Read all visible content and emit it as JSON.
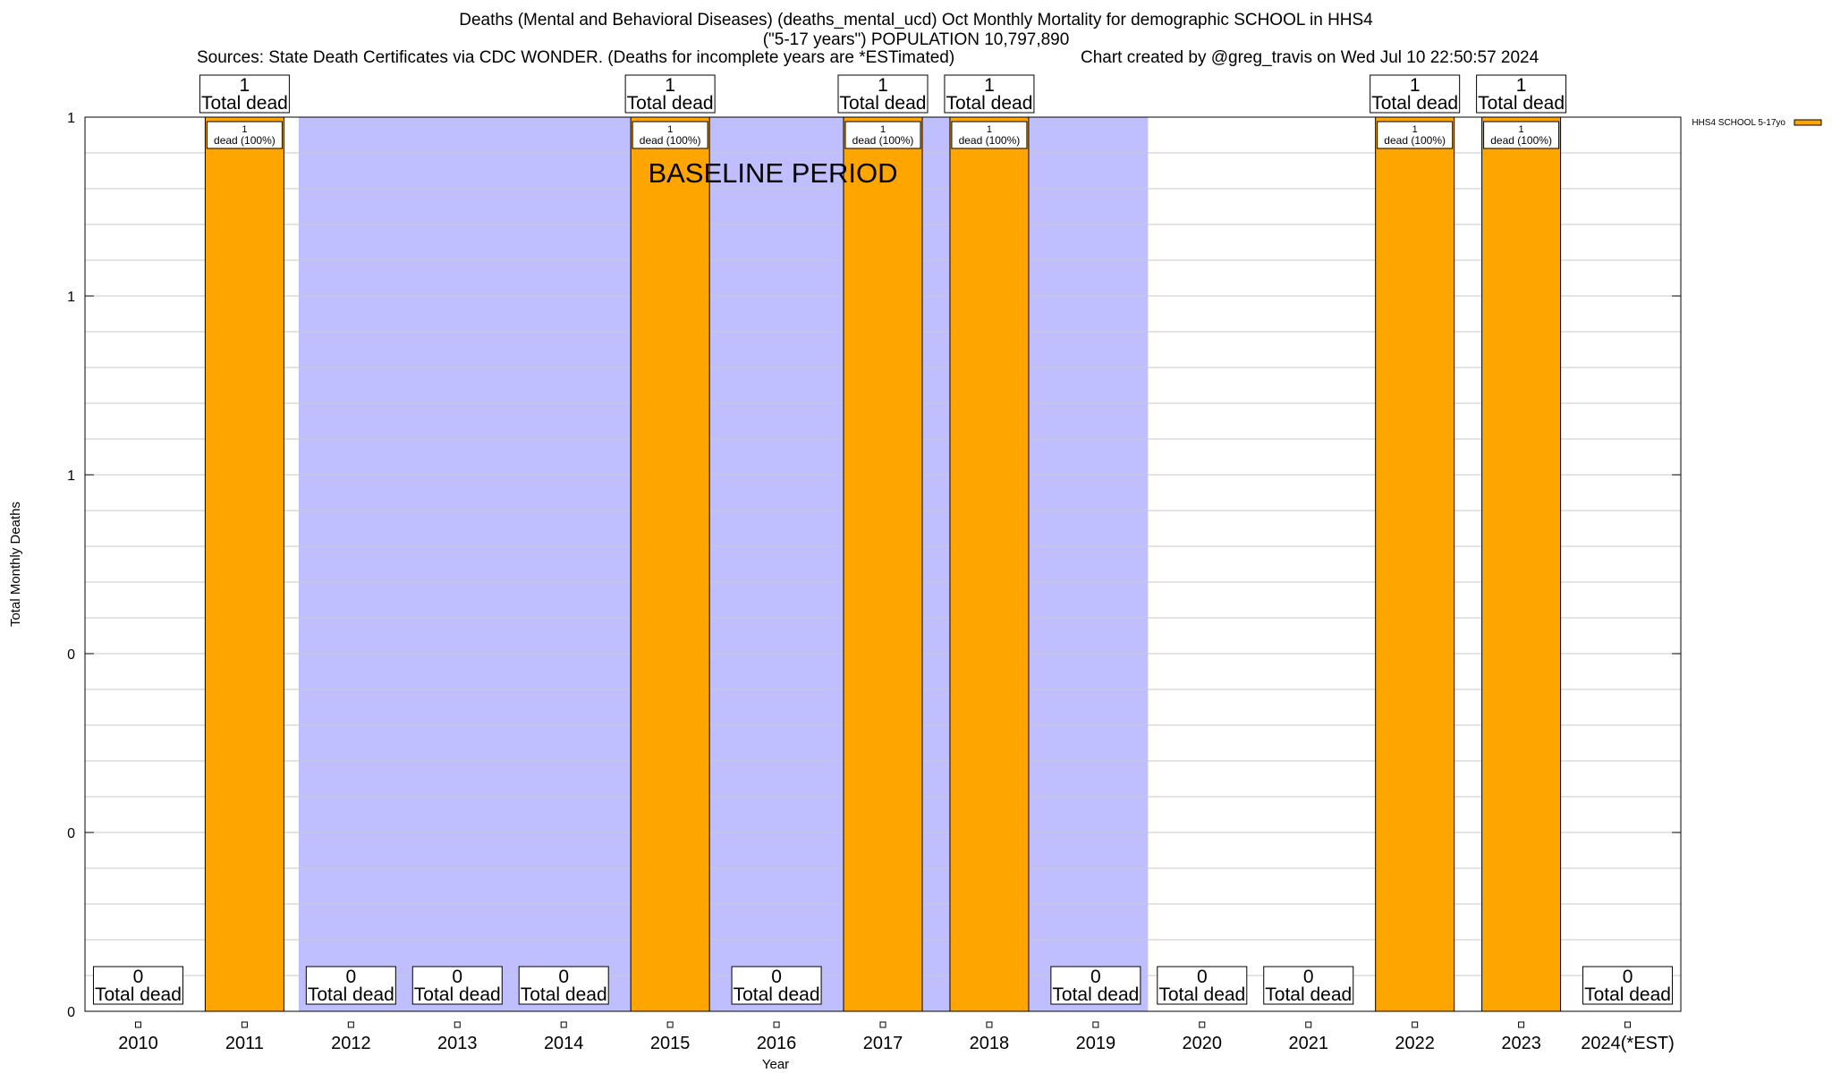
{
  "titles": {
    "line1": "Deaths (Mental and Behavioral Diseases) (deaths_mental_ucd) Oct Monthly Mortality for demographic SCHOOL in HHS4",
    "line2": "(\"5-17 years\") POPULATION 10,797,890",
    "sources": "Sources: State Death Certificates via CDC WONDER. (Deaths for incomplete years are *ESTimated)",
    "credit": "Chart created by @greg_travis on Wed Jul 10 22:50:57 2024"
  },
  "chart_data": {
    "type": "bar",
    "categories": [
      "2010",
      "2011",
      "2012",
      "2013",
      "2014",
      "2015",
      "2016",
      "2017",
      "2018",
      "2019",
      "2020",
      "2021",
      "2022",
      "2023",
      "2024(*EST)"
    ],
    "series": [
      {
        "name": "HHS4 SCHOOL 5-17yo",
        "values": [
          0,
          1,
          0,
          0,
          0,
          1,
          0,
          1,
          1,
          0,
          0,
          0,
          1,
          1,
          0
        ],
        "color": "#ffa500"
      }
    ],
    "total_labels": [
      "0",
      "1",
      "0",
      "0",
      "0",
      "1",
      "0",
      "1",
      "1",
      "0",
      "0",
      "0",
      "1",
      "1",
      "0"
    ],
    "total_suffix": "Total dead",
    "bar_labels": [
      "",
      "1\ndead (100%)",
      "",
      "",
      "",
      "1\ndead (100%)",
      "",
      "1\ndead (100%)",
      "1\ndead (100%)",
      "",
      "",
      "",
      "1\ndead (100%)",
      "1\ndead (100%)",
      ""
    ],
    "xlabel": "Year",
    "ylabel": "Total Monthly Deaths",
    "ylim": [
      0,
      1
    ],
    "yticks": [
      0,
      0.2,
      0.4,
      0.6,
      0.8,
      1
    ],
    "ytick_labels": [
      "0",
      "0",
      "0",
      "1",
      "1",
      "1"
    ],
    "baseline_period": {
      "label": "BASELINE PERIOD",
      "from": "2012",
      "to": "2019",
      "color": "#bfbfff"
    },
    "grid": true,
    "legend_position": "top-right"
  }
}
